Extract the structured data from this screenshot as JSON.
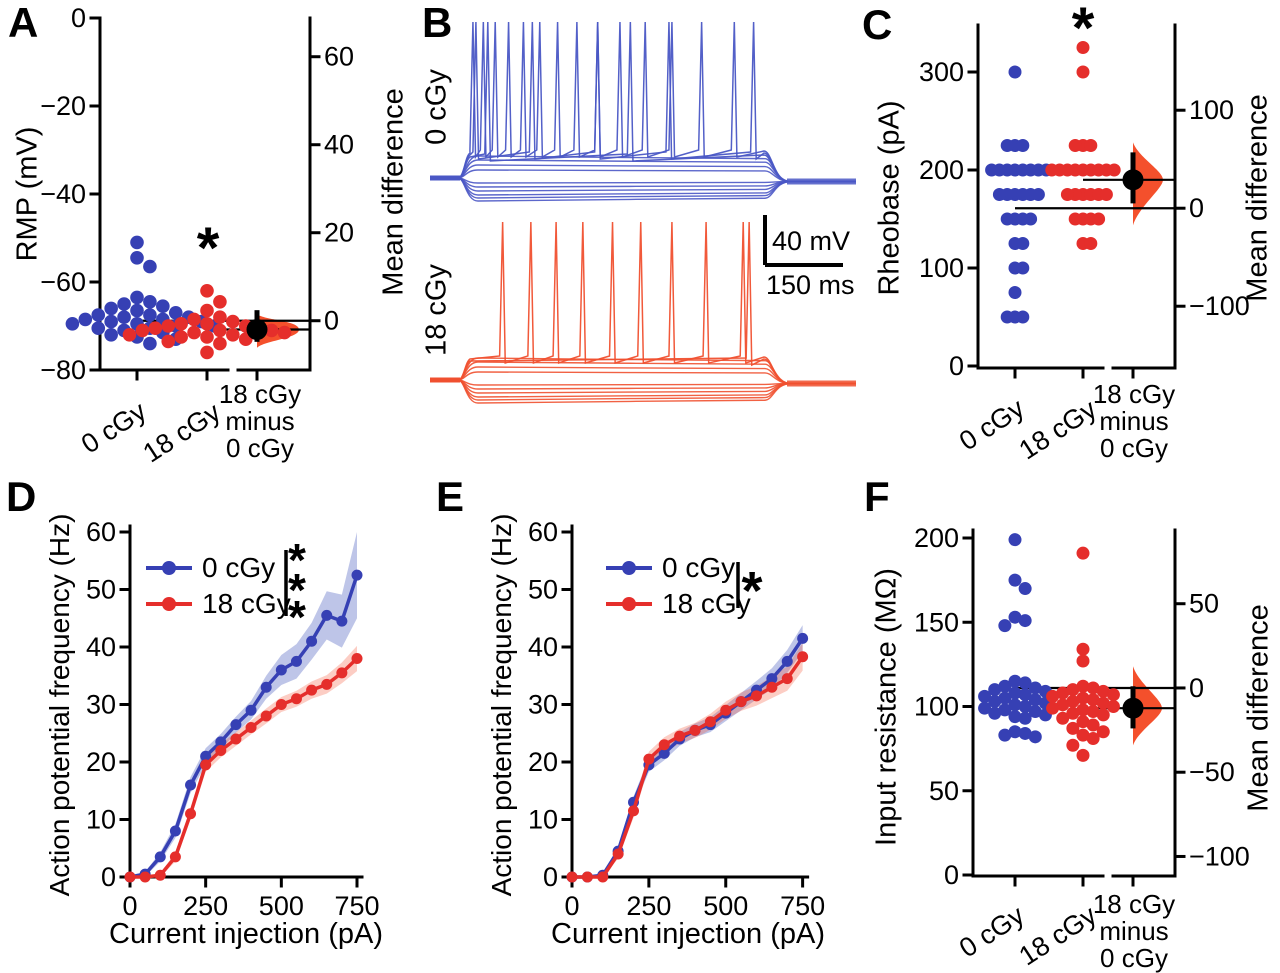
{
  "colors": {
    "blue": "#3640B4",
    "red": "#E52E2B",
    "violin": "#F4502C",
    "blue_trace": "#4A57C5",
    "red_trace": "#F0502F",
    "blue_band": "rgba(70,90,190,0.35)",
    "red_band": "rgba(244,90,60,0.30)",
    "black": "#000000"
  },
  "chart_data": [
    {
      "panel": "A",
      "type": "swarm-estimation",
      "ylabel": "RMP (mV)",
      "ylabel_right": "Mean difference",
      "ylim": [
        -80,
        0
      ],
      "yticks": [
        0,
        -20,
        -40,
        -60,
        -80
      ],
      "right_ticks": [
        60,
        40,
        20,
        0
      ],
      "sig": "*",
      "groups": [
        {
          "label": "0 cGy",
          "color": "blue",
          "values": [
            -51,
            -54.5,
            -56.5,
            -63.5,
            -64.5,
            -65,
            -65.5,
            -66,
            -66.5,
            -67,
            -67.5,
            -67.5,
            -68,
            -68,
            -68.5,
            -68.5,
            -69,
            -69,
            -69.5,
            -69.5,
            -70,
            -70,
            -70.5,
            -70.5,
            -71,
            -71.5,
            -72,
            -72.5,
            -73,
            -74
          ]
        },
        {
          "label": "18 cGy",
          "color": "red",
          "values": [
            -62,
            -64.5,
            -66.5,
            -68,
            -68.5,
            -69,
            -69.5,
            -69.5,
            -70,
            -70,
            -70.5,
            -70.5,
            -71,
            -71,
            -71,
            -71.5,
            -71.5,
            -72,
            -72,
            -72.5,
            -72.5,
            -73,
            -73.5,
            -74,
            -76
          ]
        }
      ],
      "diff": {
        "label_lines": [
          "18 cGy",
          "minus",
          "0 cGy"
        ],
        "mean": -2,
        "ci": [
          -4.8,
          2.4
        ],
        "zero_ref": -68.8
      }
    },
    {
      "panel": "B",
      "type": "traces",
      "groups": [
        {
          "label": "0 cGy",
          "color": "blue",
          "spike_sweeps": [
            [
              0.02,
              0.055,
              0.095,
              0.14,
              0.19,
              0.245,
              0.305,
              0.37,
              0.44,
              0.515,
              0.6,
              0.69,
              0.79,
              0.9
            ],
            [
              0.03,
              0.22,
              0.44,
              0.68,
              0.965
            ],
            [
              0.07,
              0.55
            ]
          ],
          "subthreshold": {
            "depolarizing": 4,
            "hyperpolarizing": 6
          }
        },
        {
          "label": "18 cGy",
          "color": "red",
          "spike_sweeps": [
            [
              0.12,
              0.215,
              0.3,
              0.39,
              0.49,
              0.585,
              0.69,
              0.805,
              0.93
            ],
            [
              0.95
            ]
          ],
          "subthreshold": {
            "depolarizing": 4,
            "hyperpolarizing": 6
          }
        }
      ],
      "scalebar": {
        "v_label": "40 mV",
        "h_label": "150 ms"
      }
    },
    {
      "panel": "C",
      "type": "swarm-estimation",
      "ylabel": "Rheobase (pA)",
      "ylabel_right": "Mean difference",
      "ylim": [
        0,
        350
      ],
      "yticks": [
        0,
        100,
        200,
        300
      ],
      "right_ticks": [
        100,
        0,
        -100
      ],
      "sig": "*",
      "groups": [
        {
          "label": "0 cGy",
          "color": "blue",
          "values": [
            300,
            225,
            225,
            225,
            200,
            200,
            200,
            200,
            200,
            200,
            200,
            200,
            175,
            175,
            175,
            175,
            175,
            175,
            150,
            150,
            150,
            150,
            125,
            125,
            100,
            100,
            75,
            50,
            50,
            50
          ]
        },
        {
          "label": "18 cGy",
          "color": "red",
          "values": [
            325,
            300,
            225,
            225,
            225,
            200,
            200,
            200,
            200,
            200,
            200,
            200,
            200,
            200,
            175,
            175,
            175,
            175,
            175,
            175,
            150,
            150,
            150,
            150,
            125,
            125
          ]
        }
      ],
      "diff": {
        "label_lines": [
          "18 cGy",
          "minus",
          "0 cGy"
        ],
        "mean": 29,
        "ci": [
          5,
          57
        ],
        "zero_ref": 161
      }
    },
    {
      "panel": "D",
      "type": "line",
      "xlabel": "Current injection (pA)",
      "ylabel": "Action potential frequency (Hz)",
      "xlim": [
        0,
        750
      ],
      "ylim": [
        0,
        60
      ],
      "xticks": [
        0,
        250,
        500,
        750
      ],
      "yticks": [
        0,
        10,
        20,
        30,
        40,
        50,
        60
      ],
      "x": [
        0,
        50,
        100,
        150,
        200,
        250,
        300,
        350,
        400,
        450,
        500,
        550,
        600,
        650,
        700,
        750
      ],
      "series": [
        {
          "name": "0 cGy",
          "color": "blue",
          "values": [
            0,
            0.5,
            3.5,
            8,
            16,
            21,
            23.5,
            26.5,
            29,
            33,
            36,
            37.5,
            41,
            45.5,
            44.5,
            52.5
          ],
          "band": [
            0.3,
            0.4,
            0.8,
            1.2,
            1.4,
            1.4,
            1.4,
            1.4,
            1.6,
            2,
            2.6,
            3,
            3.2,
            4.2,
            4.6,
            7.5
          ]
        },
        {
          "name": "18 cGy",
          "color": "red",
          "values": [
            0,
            0,
            0.3,
            3.5,
            11,
            19.5,
            22,
            24,
            26,
            28,
            30,
            31,
            32.5,
            33.5,
            35.5,
            38
          ],
          "band": [
            0.2,
            0.2,
            0.3,
            0.8,
            1,
            1.2,
            1.2,
            1.2,
            1.2,
            1.3,
            1.3,
            1.4,
            1.5,
            1.6,
            1.8,
            2.2
          ]
        }
      ],
      "sig": "***"
    },
    {
      "panel": "E",
      "type": "line",
      "xlabel": "Current injection (pA)",
      "ylabel": "Action potential frequency (Hz)",
      "xlim": [
        0,
        750
      ],
      "ylim": [
        0,
        60
      ],
      "xticks": [
        0,
        250,
        500,
        750
      ],
      "yticks": [
        0,
        10,
        20,
        30,
        40,
        50,
        60
      ],
      "x": [
        0,
        50,
        100,
        150,
        200,
        250,
        300,
        350,
        400,
        450,
        500,
        550,
        600,
        650,
        700,
        750
      ],
      "series": [
        {
          "name": "0 cGy",
          "color": "blue",
          "values": [
            0,
            0,
            0.3,
            4.5,
            13,
            19.5,
            21.5,
            24,
            25.5,
            26.5,
            28.5,
            30.5,
            32.5,
            34.5,
            37.5,
            41.5
          ],
          "band": [
            0.2,
            0.2,
            0.3,
            0.8,
            1,
            1.2,
            1.2,
            1.2,
            1.2,
            1.3,
            1.4,
            1.5,
            1.6,
            1.8,
            2,
            2.3
          ]
        },
        {
          "name": "18 cGy",
          "color": "red",
          "values": [
            0,
            0,
            0,
            4,
            11.5,
            20.5,
            23,
            24.5,
            25.5,
            27,
            29,
            30.5,
            31.5,
            33,
            34.5,
            38.3
          ],
          "band": [
            0.2,
            0.2,
            0.3,
            0.8,
            1.2,
            1.3,
            1.3,
            1.3,
            1.3,
            1.4,
            1.5,
            1.6,
            1.7,
            1.9,
            2.1,
            2.4
          ]
        }
      ],
      "sig": "*"
    },
    {
      "panel": "F",
      "type": "swarm-estimation",
      "ylabel": "Input resistance (MΩ)",
      "ylabel_right": "Mean difference",
      "ylim": [
        0,
        200
      ],
      "yticks": [
        0,
        50,
        100,
        150,
        200
      ],
      "right_ticks": [
        50,
        0,
        -50,
        -100
      ],
      "sig": "",
      "groups": [
        {
          "label": "0 cGy",
          "color": "blue",
          "values": [
            199,
            175,
            170,
            153,
            151,
            148,
            115,
            114,
            112,
            111,
            110,
            109,
            108,
            107,
            106,
            105,
            104,
            103,
            102,
            101,
            100,
            99,
            98,
            97,
            96,
            95,
            94,
            93,
            85,
            84,
            83,
            82
          ]
        },
        {
          "label": "18 cGy",
          "color": "red",
          "values": [
            191,
            134,
            127,
            112,
            111,
            110,
            109,
            108,
            107,
            106,
            105,
            104,
            103,
            102,
            101,
            100,
            99,
            98,
            97,
            96,
            95,
            93,
            91,
            89,
            87,
            85,
            83,
            81,
            77,
            71
          ]
        }
      ],
      "diff": {
        "label_lines": [
          "18 cGy",
          "minus",
          "0 cGy"
        ],
        "mean": -12,
        "ci": [
          -24,
          1
        ],
        "zero_ref": 111
      }
    }
  ]
}
